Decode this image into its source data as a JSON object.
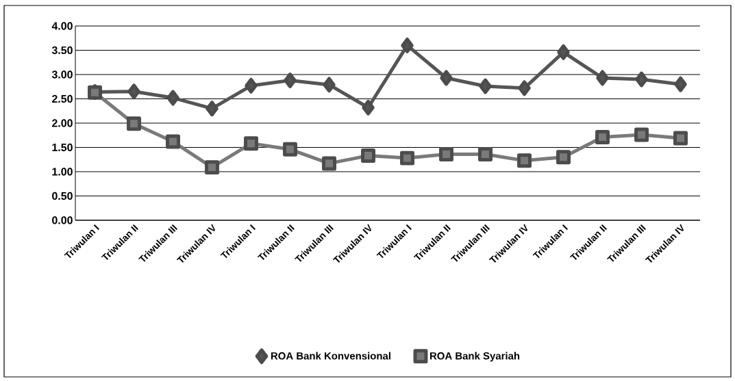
{
  "chart_data": {
    "type": "line",
    "categories": [
      "Triwulan I",
      "Triwulan II",
      "Triwulan III",
      "Triwulan IV",
      "Triwulan I",
      "Triwulan II",
      "Triwulan III",
      "Triwulan IV",
      "Triwulan I",
      "Triwulan II",
      "Triwulan III",
      "Triwulan IV",
      "Triwulan I",
      "Triwulan II",
      "Triwulan III",
      "Triwulan IV"
    ],
    "series": [
      {
        "name": "ROA Bank Konvensional",
        "color": "#555555",
        "marker": "diamond",
        "values": [
          2.64,
          2.65,
          2.52,
          2.3,
          2.77,
          2.88,
          2.79,
          2.32,
          3.6,
          2.93,
          2.76,
          2.72,
          3.46,
          2.93,
          2.9,
          2.8
        ]
      },
      {
        "name": "ROA Bank Syariah",
        "color": "#7a7a7a",
        "marker": "square",
        "values": [
          2.63,
          1.99,
          1.62,
          1.09,
          1.58,
          1.46,
          1.17,
          1.33,
          1.28,
          1.36,
          1.36,
          1.23,
          1.3,
          1.71,
          1.76,
          1.69
        ]
      }
    ],
    "ylim": [
      0,
      4
    ],
    "yticks": [
      {
        "value": 0,
        "label": "0.00"
      },
      {
        "value": 0.5,
        "label": "0.50"
      },
      {
        "value": 1,
        "label": "1.00"
      },
      {
        "value": 1.5,
        "label": "1.50"
      },
      {
        "value": 2,
        "label": "2.00"
      },
      {
        "value": 2.5,
        "label": "2.50"
      },
      {
        "value": 3,
        "label": "3.00"
      },
      {
        "value": 3.5,
        "label": "3.50"
      },
      {
        "value": 4,
        "label": "4.00"
      }
    ],
    "grid": "y",
    "legend": "bottom",
    "line_style": "solid"
  }
}
